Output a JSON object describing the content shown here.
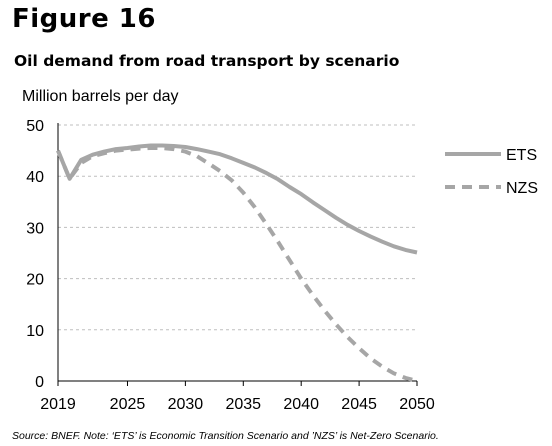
{
  "figure_label": "Figure 16",
  "chart_data": {
    "type": "line",
    "title": "Oil demand from road transport by scenario",
    "ylabel": "Million barrels per day",
    "xlabel": "",
    "ylim": [
      0,
      50
    ],
    "xlim": [
      2019,
      2050
    ],
    "x_ticks": [
      2019,
      2025,
      2030,
      2035,
      2040,
      2045,
      2050
    ],
    "y_ticks": [
      0,
      10,
      20,
      30,
      40,
      50
    ],
    "grid": true,
    "legend_position": "right",
    "x": [
      2019,
      2020,
      2021,
      2022,
      2023,
      2024,
      2025,
      2026,
      2027,
      2028,
      2029,
      2030,
      2031,
      2032,
      2033,
      2034,
      2035,
      2036,
      2037,
      2038,
      2039,
      2040,
      2041,
      2042,
      2043,
      2044,
      2045,
      2046,
      2047,
      2048,
      2049,
      2050
    ],
    "series": [
      {
        "name": "ETS",
        "style": "solid",
        "color": "#a6a6a6",
        "values": [
          45.0,
          39.5,
          43.2,
          44.2,
          44.8,
          45.3,
          45.5,
          45.8,
          46.0,
          46.0,
          45.9,
          45.7,
          45.3,
          44.8,
          44.3,
          43.5,
          42.6,
          41.7,
          40.6,
          39.4,
          37.9,
          36.5,
          34.9,
          33.4,
          31.9,
          30.5,
          29.3,
          28.2,
          27.2,
          26.3,
          25.6,
          25.1
        ]
      },
      {
        "name": "NZS",
        "style": "dashed",
        "color": "#a6a6a6",
        "values": [
          45.0,
          39.5,
          42.6,
          43.9,
          44.5,
          45.0,
          45.2,
          45.4,
          45.5,
          45.5,
          45.3,
          44.8,
          43.9,
          42.5,
          41.0,
          39.2,
          36.8,
          33.9,
          30.6,
          27.2,
          23.6,
          20.0,
          16.8,
          13.8,
          11.1,
          8.6,
          6.4,
          4.4,
          2.8,
          1.5,
          0.6,
          0.0
        ]
      }
    ]
  },
  "source": "Source: BNEF. Note: ‘ETS’ is Economic Transition Scenario and ’NZS’ is Net-Zero Scenario."
}
